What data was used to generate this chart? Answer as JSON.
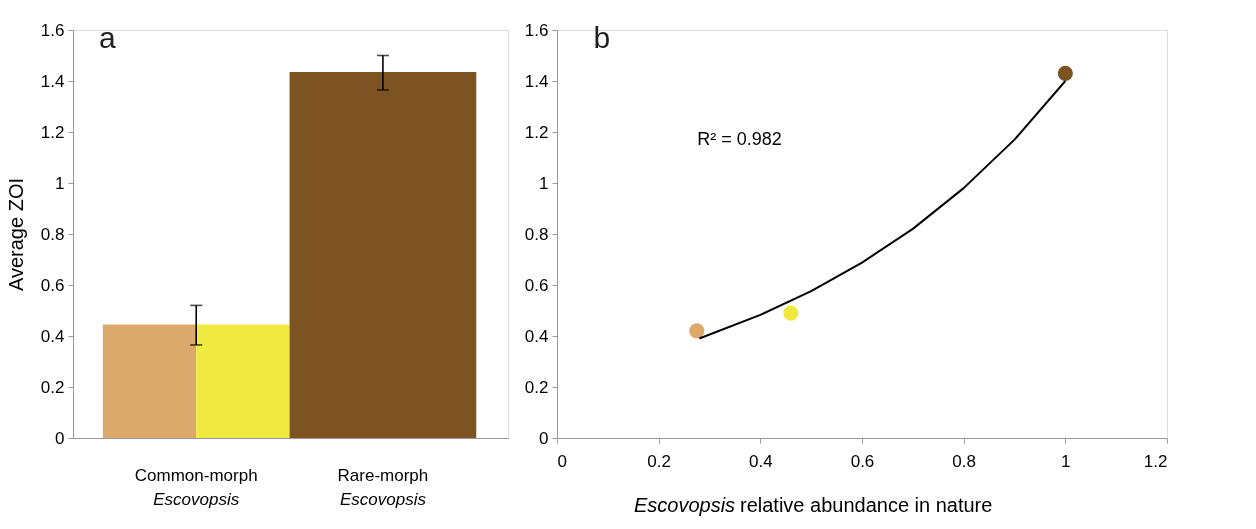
{
  "chart_data": [
    {
      "type": "bar",
      "title": "a",
      "ylabel": "Average ZOI",
      "categories": [
        "Common-morph Escovopsis",
        "Rare-morph Escovopsis"
      ],
      "series": [
        {
          "color": "#dba96b",
          "values": [
            0.445,
            null
          ],
          "errors": [
            [
              0.365,
              0.52
            ],
            null
          ]
        },
        {
          "color": "#f0ea40",
          "values": [
            0.445,
            null
          ]
        },
        {
          "color": "#7d5322",
          "values": [
            null,
            1.435
          ],
          "errors": [
            null,
            [
              1.365,
              1.5
            ]
          ]
        }
      ],
      "ylim": [
        0,
        1.6
      ],
      "yticks": [
        0,
        0.2,
        0.4,
        0.6,
        0.8,
        1,
        1.2,
        1.4,
        1.6
      ],
      "grid": false
    },
    {
      "type": "scatter",
      "title": "b",
      "xlabel": "Escovopsis relative abundance in nature",
      "series": [
        {
          "type": "scatter",
          "x": [
            0.275,
            0.46,
            1.0
          ],
          "values": [
            0.42,
            0.49,
            1.43
          ],
          "colors": [
            "#dba96b",
            "#f0ea40",
            "#7d5322"
          ]
        },
        {
          "type": "line",
          "marker": "none",
          "color": "#000000",
          "x": [
            0.28,
            0.4,
            0.5,
            0.6,
            0.7,
            0.8,
            0.9,
            1.0
          ],
          "values": [
            0.39,
            0.483,
            0.576,
            0.688,
            0.82,
            0.98,
            1.17,
            1.4
          ]
        }
      ],
      "annotations": [
        "R² = 0.982"
      ],
      "marker": "circle",
      "xlim": [
        0,
        1.2
      ],
      "xticks": [
        0,
        0.2,
        0.4,
        0.6,
        0.8,
        1,
        1.2
      ],
      "ylim": [
        0,
        1.6
      ],
      "yticks": [
        0,
        0.2,
        0.4,
        0.6,
        0.8,
        1,
        1.2,
        1.4,
        1.6
      ],
      "grid": false
    }
  ]
}
